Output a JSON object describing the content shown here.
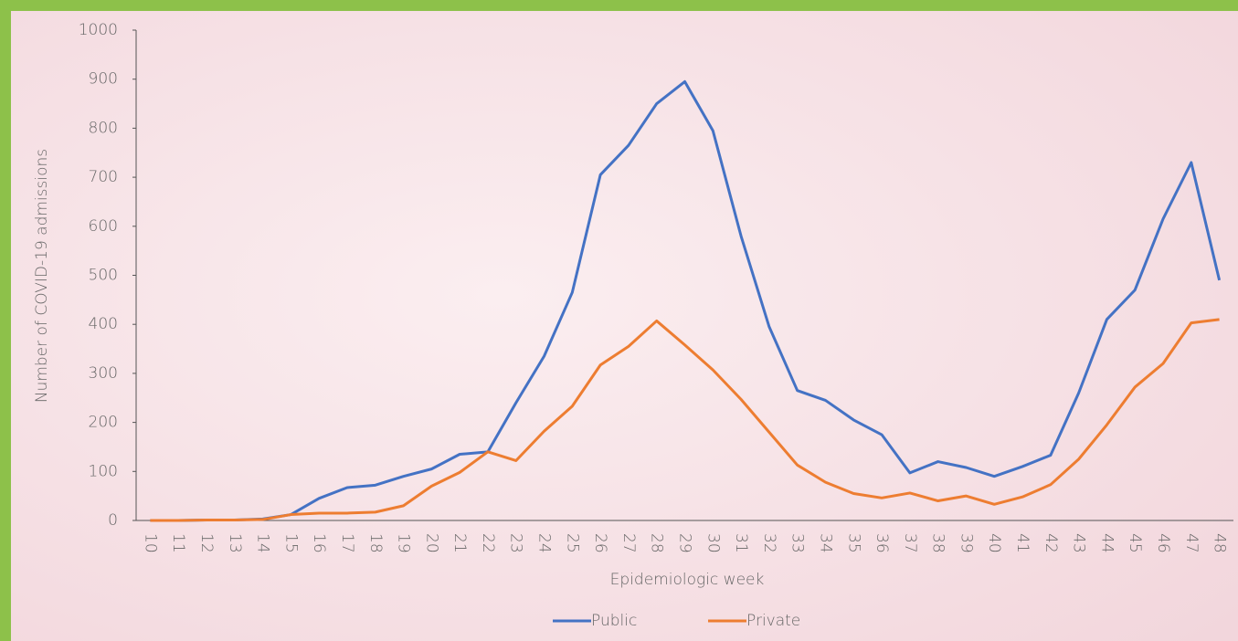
{
  "chart_data": {
    "type": "line",
    "x_label": "Epidemiologic week",
    "y_label": "Number of COVID-19 admissions",
    "categories": [
      "10",
      "11",
      "12",
      "13",
      "14",
      "15",
      "16",
      "17",
      "18",
      "19",
      "20",
      "21",
      "22",
      "23",
      "24",
      "25",
      "26",
      "27",
      "28",
      "29",
      "30",
      "31",
      "32",
      "33",
      "34",
      "35",
      "36",
      "37",
      "38",
      "39",
      "40",
      "41",
      "42",
      "43",
      "44",
      "45",
      "46",
      "47",
      "48"
    ],
    "series": [
      {
        "name": "Public",
        "color": "#4472c4",
        "values": [
          0,
          0,
          1,
          1,
          3,
          12,
          45,
          67,
          72,
          90,
          105,
          135,
          140,
          240,
          335,
          465,
          705,
          765,
          850,
          895,
          795,
          580,
          395,
          265,
          245,
          205,
          175,
          97,
          120,
          108,
          90,
          110,
          133,
          260,
          410,
          470,
          615,
          730,
          490
        ]
      },
      {
        "name": "Private",
        "color": "#ed7d31",
        "values": [
          0,
          0,
          1,
          1,
          2,
          12,
          15,
          15,
          17,
          30,
          70,
          98,
          140,
          122,
          182,
          233,
          317,
          355,
          407,
          358,
          307,
          247,
          180,
          113,
          78,
          55,
          46,
          56,
          40,
          50,
          33,
          48,
          73,
          125,
          195,
          272,
          320,
          403,
          410
        ]
      }
    ],
    "ylim": [
      0,
      1000
    ],
    "yticks": [
      0,
      100,
      200,
      300,
      400,
      500,
      600,
      700,
      800,
      900,
      1000
    ],
    "grid": false,
    "legend": "bottom"
  }
}
